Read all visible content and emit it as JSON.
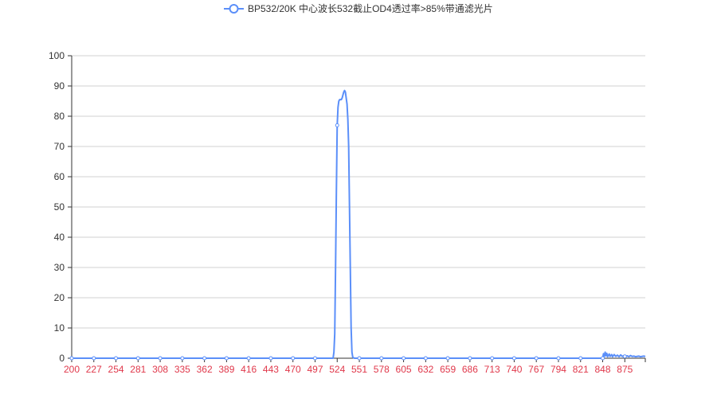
{
  "chart_data": {
    "type": "line",
    "title": "",
    "legend": {
      "position": "top-center"
    },
    "xlabel": "",
    "ylabel": "",
    "x_tick_labels": [
      "200",
      "227",
      "254",
      "281",
      "308",
      "335",
      "362",
      "389",
      "416",
      "443",
      "470",
      "497",
      "524",
      "551",
      "578",
      "605",
      "632",
      "659",
      "686",
      "713",
      "740",
      "767",
      "794",
      "821",
      "848",
      "875"
    ],
    "y_tick_labels": [
      "0",
      "10",
      "20",
      "30",
      "40",
      "50",
      "60",
      "70",
      "80",
      "90",
      "100"
    ],
    "xlim": [
      200,
      900
    ],
    "ylim": [
      0,
      100
    ],
    "grid": {
      "horizontal": true,
      "vertical": false
    },
    "colors": {
      "series": "#5b8ff9",
      "x_tick_label": "#e0384b",
      "axis_text": "#333333",
      "gridline": "#d0d0d0",
      "axis_line": "#333333"
    },
    "series": [
      {
        "name": "BP532/20K 中心波长532截止OD4透过率>85%带通滤光片",
        "points": [
          [
            200,
            0
          ],
          [
            227,
            0
          ],
          [
            254,
            0
          ],
          [
            281,
            0
          ],
          [
            308,
            0
          ],
          [
            335,
            0
          ],
          [
            362,
            0
          ],
          [
            389,
            0
          ],
          [
            416,
            0
          ],
          [
            443,
            0
          ],
          [
            470,
            0
          ],
          [
            497,
            0
          ],
          [
            519,
            0
          ],
          [
            520,
            2
          ],
          [
            521,
            8
          ],
          [
            522,
            30
          ],
          [
            523,
            55
          ],
          [
            524,
            77
          ],
          [
            525,
            83
          ],
          [
            526,
            85
          ],
          [
            527,
            85.5
          ],
          [
            528,
            85.5
          ],
          [
            529,
            85.5
          ],
          [
            530,
            86
          ],
          [
            531,
            87
          ],
          [
            532,
            88
          ],
          [
            533,
            88.5
          ],
          [
            534,
            88
          ],
          [
            535,
            86
          ],
          [
            536,
            84
          ],
          [
            537,
            79
          ],
          [
            538,
            70
          ],
          [
            539,
            50
          ],
          [
            540,
            30
          ],
          [
            541,
            10
          ],
          [
            542,
            2
          ],
          [
            543,
            0.3
          ],
          [
            545,
            0
          ],
          [
            551,
            0
          ],
          [
            578,
            0
          ],
          [
            605,
            0
          ],
          [
            632,
            0
          ],
          [
            659,
            0
          ],
          [
            686,
            0
          ],
          [
            713,
            0
          ],
          [
            740,
            0
          ],
          [
            767,
            0
          ],
          [
            794,
            0
          ],
          [
            821,
            0
          ],
          [
            848,
            0
          ],
          [
            849,
            1.5
          ],
          [
            850,
            0.6
          ],
          [
            851,
            2.0
          ],
          [
            852,
            0.8
          ],
          [
            853,
            1.6
          ],
          [
            854,
            0.5
          ],
          [
            856,
            1.4
          ],
          [
            857,
            0.6
          ],
          [
            859,
            1.2
          ],
          [
            860,
            0.5
          ],
          [
            862,
            1.2
          ],
          [
            864,
            0.6
          ],
          [
            866,
            1.0
          ],
          [
            868,
            0.5
          ],
          [
            870,
            1.1
          ],
          [
            872,
            0.6
          ],
          [
            874,
            0.9
          ],
          [
            876,
            0.6
          ],
          [
            878,
            0.8
          ],
          [
            880,
            0.5
          ],
          [
            882,
            0.9
          ],
          [
            884,
            0.6
          ],
          [
            886,
            0.7
          ],
          [
            888,
            0.5
          ],
          [
            890,
            0.6
          ],
          [
            892,
            0.7
          ],
          [
            894,
            0.5
          ],
          [
            896,
            0.6
          ],
          [
            898,
            0.7
          ],
          [
            900,
            0.6
          ]
        ],
        "markers": [
          [
            200,
            0
          ],
          [
            227,
            0
          ],
          [
            254,
            0
          ],
          [
            281,
            0
          ],
          [
            308,
            0
          ],
          [
            335,
            0
          ],
          [
            362,
            0
          ],
          [
            389,
            0
          ],
          [
            416,
            0
          ],
          [
            443,
            0
          ],
          [
            470,
            0
          ],
          [
            497,
            0
          ],
          [
            524,
            77
          ],
          [
            551,
            0
          ],
          [
            578,
            0
          ],
          [
            605,
            0
          ],
          [
            632,
            0
          ],
          [
            659,
            0
          ],
          [
            686,
            0
          ],
          [
            713,
            0
          ],
          [
            740,
            0
          ],
          [
            767,
            0
          ],
          [
            794,
            0
          ],
          [
            821,
            0
          ],
          [
            848,
            0
          ],
          [
            875,
            0.6
          ]
        ]
      }
    ]
  }
}
